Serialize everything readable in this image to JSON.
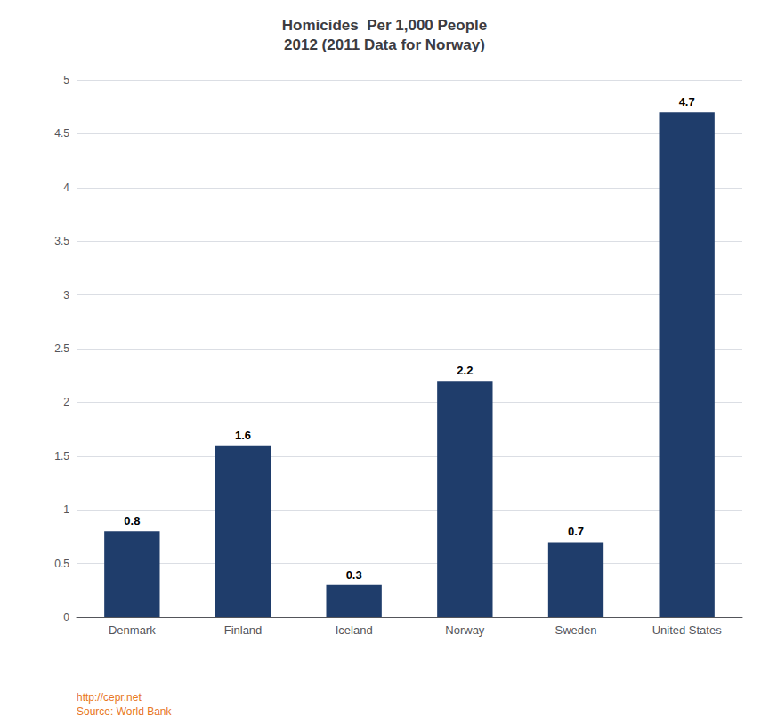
{
  "chart_data": {
    "type": "bar",
    "title": "Homicides  Per 1,000 People\n2012 (2011 Data for Norway)",
    "categories": [
      "Denmark",
      "Finland",
      "Iceland",
      "Norway",
      "Sweden",
      "United States"
    ],
    "values": [
      0.8,
      1.6,
      0.3,
      2.2,
      0.7,
      4.7
    ],
    "color": "#1F3D6B",
    "ylim": [
      0,
      5
    ],
    "yticks": [
      0,
      0.5,
      1,
      1.5,
      2,
      2.5,
      3,
      3.5,
      4,
      4.5,
      5
    ],
    "grid": true,
    "data_labels": true,
    "annotations": [
      {
        "text": "http://cepr.net",
        "color": "#E87722"
      },
      {
        "text": "Source: World Bank",
        "color": "#E87722"
      }
    ]
  }
}
